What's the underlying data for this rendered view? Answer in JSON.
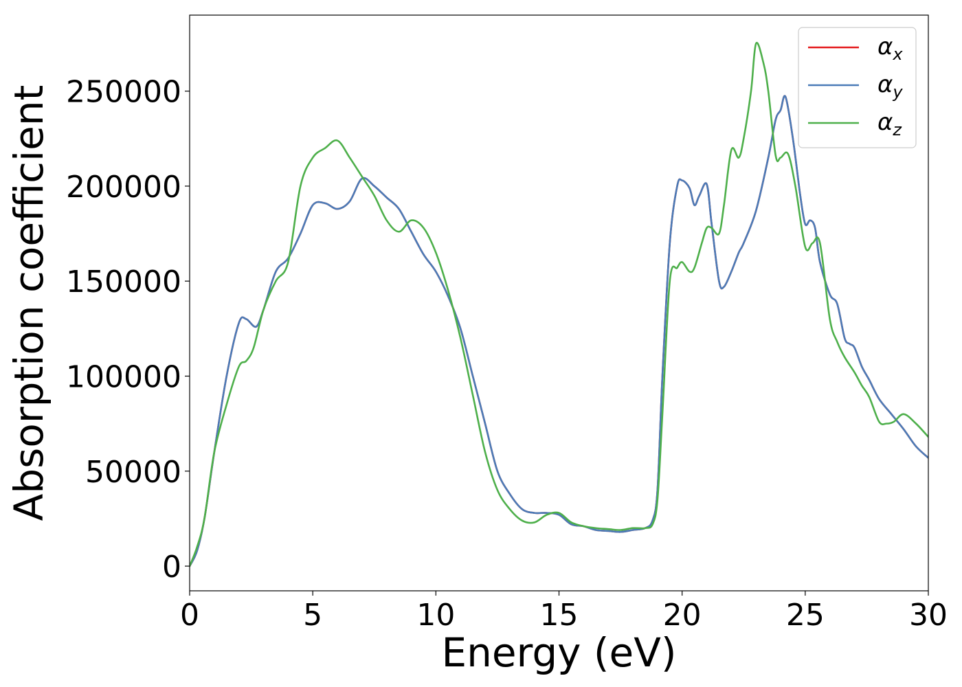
{
  "chart_data": {
    "type": "line",
    "title": "",
    "xlabel": "Energy (eV)",
    "ylabel": "Absorption coefficient",
    "xlim": [
      0,
      30
    ],
    "ylim": [
      -13000,
      290000
    ],
    "xticks": [
      0,
      5,
      10,
      15,
      20,
      25,
      30
    ],
    "xtick_labels": [
      "0",
      "5",
      "10",
      "15",
      "20",
      "25",
      "30"
    ],
    "yticks": [
      0,
      50000,
      100000,
      150000,
      200000,
      250000
    ],
    "ytick_labels": [
      "0",
      "50000",
      "100000",
      "150000",
      "200000",
      "250000"
    ],
    "grid": false,
    "legend_position": "top-right",
    "series": [
      {
        "name": "α_x",
        "label_base": "α",
        "label_sub": "x",
        "color": "#e41a1c",
        "x": [
          0,
          0.3,
          0.6,
          1.0,
          1.5,
          2.0,
          2.3,
          2.7,
          3.0,
          3.5,
          4.0,
          4.5,
          5.0,
          5.5,
          6.0,
          6.5,
          7.0,
          7.5,
          8.0,
          8.5,
          9.0,
          9.5,
          10.0,
          10.5,
          11.0,
          11.5,
          12.0,
          12.5,
          13.0,
          13.5,
          14.0,
          14.5,
          15.0,
          15.5,
          16.0,
          16.5,
          17.0,
          17.5,
          18.0,
          18.5,
          18.8,
          19.0,
          19.2,
          19.5,
          19.8,
          20.0,
          20.3,
          20.5,
          20.7,
          21.0,
          21.2,
          21.5,
          21.7,
          22.0,
          22.3,
          22.5,
          23.0,
          23.5,
          23.8,
          24.0,
          24.2,
          24.5,
          24.8,
          25.0,
          25.2,
          25.4,
          25.6,
          26.0,
          26.3,
          26.6,
          26.8,
          27.0,
          27.3,
          27.6,
          28.0,
          28.5,
          29.0,
          29.5,
          30.0
        ],
        "y": [
          0,
          8000,
          25000,
          60000,
          100000,
          128000,
          130000,
          126000,
          135000,
          155000,
          162000,
          175000,
          190000,
          191000,
          188000,
          192000,
          204000,
          200000,
          194000,
          188000,
          176000,
          164000,
          155000,
          142000,
          125000,
          100000,
          75000,
          50000,
          38000,
          30000,
          28000,
          28000,
          27000,
          22000,
          21000,
          19000,
          18500,
          18000,
          19000,
          20000,
          24000,
          40000,
          100000,
          170000,
          200000,
          203000,
          199000,
          190000,
          195000,
          201000,
          180000,
          150000,
          147000,
          155000,
          165000,
          170000,
          187000,
          215000,
          235000,
          240000,
          247000,
          225000,
          195000,
          180000,
          182000,
          178000,
          160000,
          143000,
          138000,
          120000,
          117000,
          115000,
          105000,
          98000,
          88000,
          80000,
          72000,
          63000,
          57000
        ]
      },
      {
        "name": "α_y",
        "label_base": "α",
        "label_sub": "y",
        "color": "#4a7bb7",
        "x": [
          0,
          0.3,
          0.6,
          1.0,
          1.5,
          2.0,
          2.3,
          2.7,
          3.0,
          3.5,
          4.0,
          4.5,
          5.0,
          5.5,
          6.0,
          6.5,
          7.0,
          7.5,
          8.0,
          8.5,
          9.0,
          9.5,
          10.0,
          10.5,
          11.0,
          11.5,
          12.0,
          12.5,
          13.0,
          13.5,
          14.0,
          14.5,
          15.0,
          15.5,
          16.0,
          16.5,
          17.0,
          17.5,
          18.0,
          18.5,
          18.8,
          19.0,
          19.2,
          19.5,
          19.8,
          20.0,
          20.3,
          20.5,
          20.7,
          21.0,
          21.2,
          21.5,
          21.7,
          22.0,
          22.3,
          22.5,
          23.0,
          23.5,
          23.8,
          24.0,
          24.2,
          24.5,
          24.8,
          25.0,
          25.2,
          25.4,
          25.6,
          26.0,
          26.3,
          26.6,
          26.8,
          27.0,
          27.3,
          27.6,
          28.0,
          28.5,
          29.0,
          29.5,
          30.0
        ],
        "y": [
          0,
          8000,
          25000,
          60000,
          100000,
          128000,
          130000,
          126000,
          135000,
          155000,
          162000,
          175000,
          190000,
          191000,
          188000,
          192000,
          204000,
          200000,
          194000,
          188000,
          176000,
          164000,
          155000,
          142000,
          125000,
          100000,
          75000,
          50000,
          38000,
          30000,
          28000,
          28000,
          27000,
          22000,
          21000,
          19000,
          18500,
          18000,
          19000,
          20000,
          24000,
          40000,
          100000,
          170000,
          200000,
          203000,
          199000,
          190000,
          195000,
          201000,
          180000,
          150000,
          147000,
          155000,
          165000,
          170000,
          187000,
          215000,
          235000,
          240000,
          247000,
          225000,
          195000,
          180000,
          182000,
          178000,
          160000,
          143000,
          138000,
          120000,
          117000,
          115000,
          105000,
          98000,
          88000,
          80000,
          72000,
          63000,
          57000
        ]
      },
      {
        "name": "α_z",
        "label_base": "α",
        "label_sub": "z",
        "color": "#4daf4a",
        "x": [
          0,
          0.3,
          0.6,
          1.0,
          1.5,
          2.0,
          2.3,
          2.6,
          3.0,
          3.5,
          4.0,
          4.5,
          5.0,
          5.5,
          6.0,
          6.5,
          7.0,
          7.5,
          8.0,
          8.5,
          9.0,
          9.5,
          10.0,
          10.5,
          11.0,
          11.5,
          12.0,
          12.5,
          13.0,
          13.5,
          14.0,
          14.5,
          15.0,
          15.5,
          16.0,
          16.5,
          17.0,
          17.5,
          18.0,
          18.5,
          18.8,
          19.0,
          19.2,
          19.5,
          19.8,
          20.0,
          20.3,
          20.5,
          20.8,
          21.0,
          21.2,
          21.5,
          21.7,
          22.0,
          22.3,
          22.5,
          22.8,
          23.0,
          23.3,
          23.5,
          23.8,
          24.0,
          24.3,
          24.6,
          25.0,
          25.3,
          25.6,
          26.0,
          26.3,
          26.6,
          27.0,
          27.3,
          27.6,
          28.0,
          28.3,
          28.6,
          29.0,
          29.5,
          30.0
        ],
        "y": [
          0,
          10000,
          25000,
          60000,
          85000,
          105000,
          108000,
          115000,
          135000,
          150000,
          160000,
          200000,
          215000,
          220000,
          224000,
          215000,
          205000,
          195000,
          182000,
          176000,
          182000,
          178000,
          165000,
          145000,
          120000,
          90000,
          60000,
          40000,
          30000,
          24000,
          23000,
          27000,
          28000,
          23000,
          21000,
          20000,
          19500,
          19000,
          20000,
          20000,
          22000,
          35000,
          80000,
          150000,
          157000,
          160000,
          155000,
          157000,
          170000,
          178000,
          178000,
          175000,
          190000,
          219000,
          215000,
          225000,
          250000,
          275000,
          265000,
          250000,
          216000,
          215000,
          217000,
          200000,
          168000,
          170000,
          170000,
          130000,
          118000,
          110000,
          102000,
          95000,
          89000,
          76000,
          75000,
          76000,
          80000,
          75000,
          68000
        ]
      }
    ]
  }
}
